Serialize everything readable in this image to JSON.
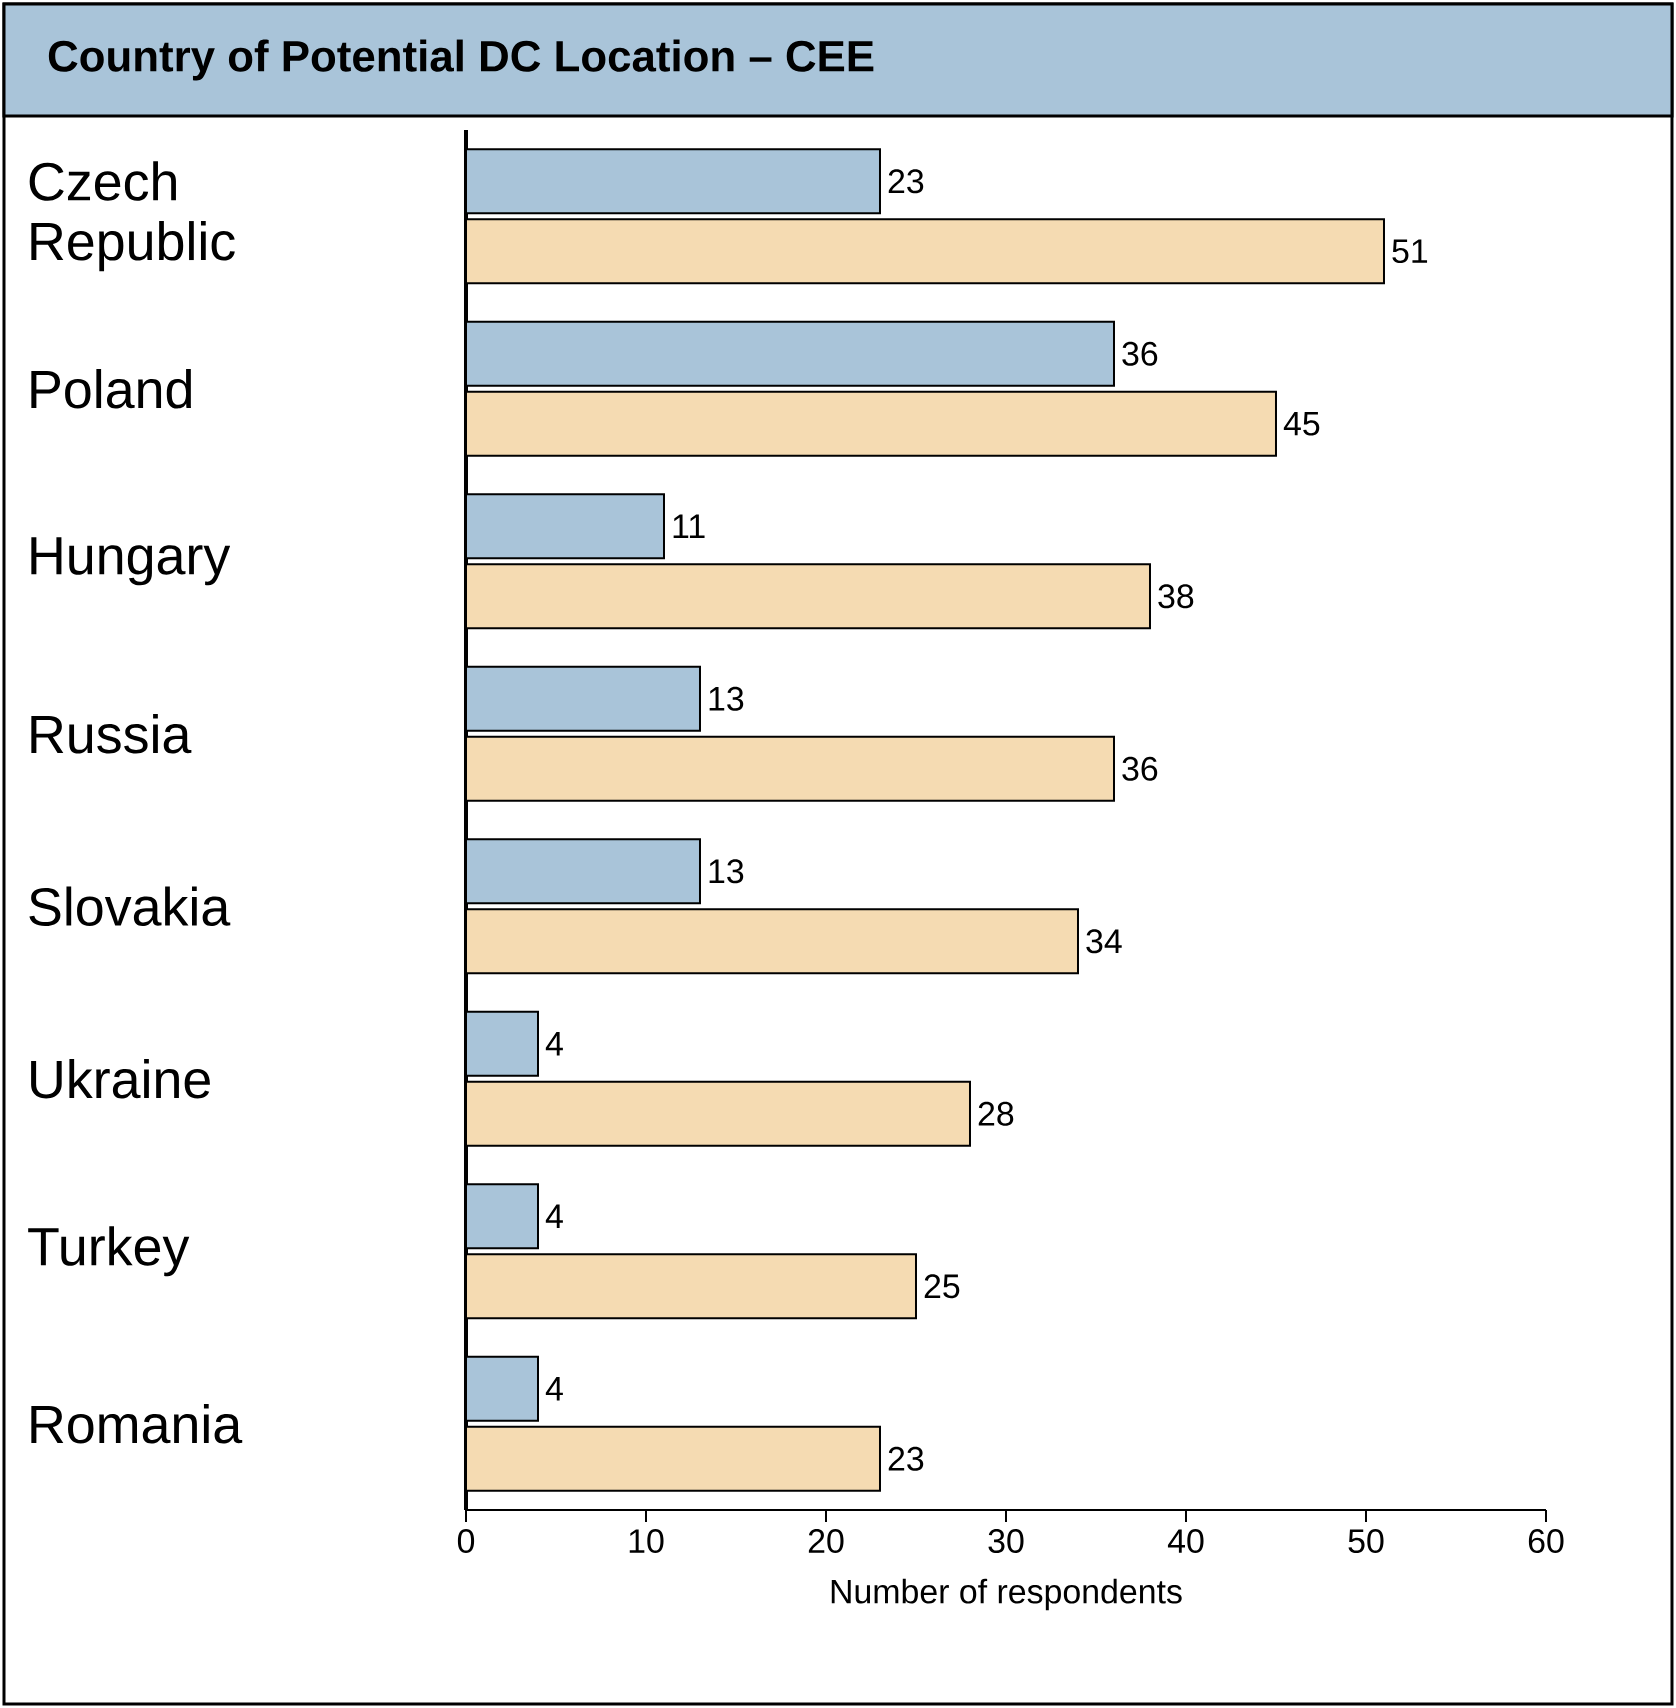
{
  "chart_data": {
    "type": "bar",
    "orientation": "horizontal",
    "title": "Country of Potential DC Location – CEE",
    "categories": [
      "Czech Republic",
      "Poland",
      "Hungary",
      "Russia",
      "Slovakia",
      "Ukraine",
      "Turkey",
      "Romania"
    ],
    "series": [
      {
        "color": "#a9c4d9",
        "values": [
          23,
          36,
          11,
          13,
          13,
          4,
          4,
          4
        ]
      },
      {
        "color": "#f5dbb2",
        "values": [
          51,
          45,
          38,
          36,
          34,
          28,
          25,
          23
        ]
      }
    ],
    "xlabel": "Number of respondents",
    "xlim": [
      0,
      60
    ],
    "xticks": [
      0,
      10,
      20,
      30,
      40,
      50,
      60
    ],
    "data_labels": true
  }
}
